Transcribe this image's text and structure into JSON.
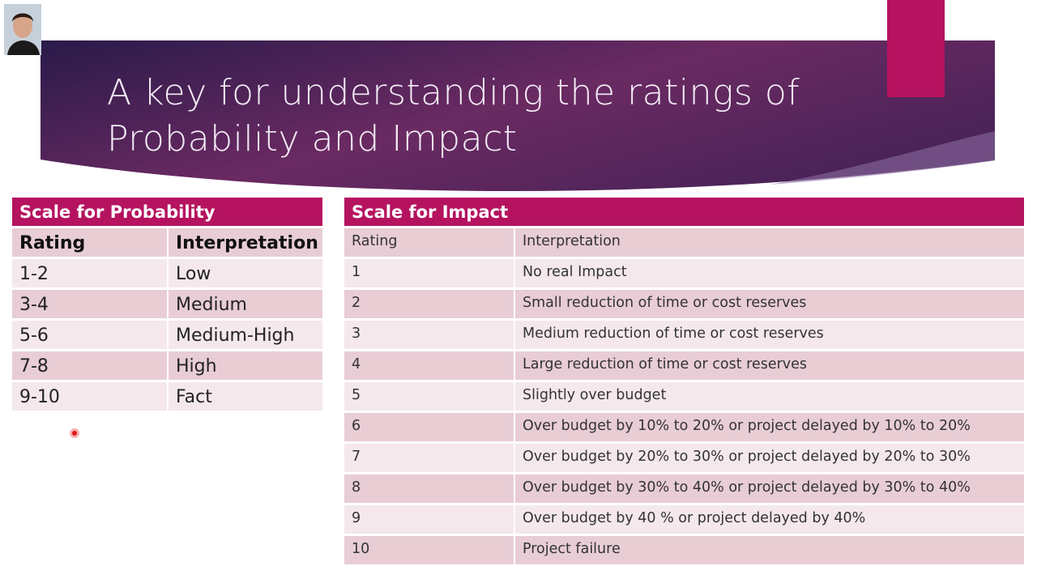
{
  "slide": {
    "title_line1": "A key for understanding the ratings of",
    "title_line2": "Probability and Impact",
    "colors": {
      "banner_dark": "#2a1a4a",
      "banner_light": "#7a2e6e",
      "accent": "#b5135f",
      "row_dark": "#e8cdd5",
      "row_light": "#f4e8ec"
    }
  },
  "probability": {
    "title": "Scale for Probability",
    "headers": [
      "Rating",
      "Interpretation"
    ],
    "rows": [
      [
        "1-2",
        "Low"
      ],
      [
        "3-4",
        "Medium"
      ],
      [
        "5-6",
        "Medium-High"
      ],
      [
        "7-8",
        "High"
      ],
      [
        "9-10",
        "Fact"
      ]
    ]
  },
  "impact": {
    "title": "Scale for Impact",
    "headers": [
      "Rating",
      "Interpretation"
    ],
    "rows": [
      [
        "1",
        "No real Impact"
      ],
      [
        "2",
        "Small reduction of time or cost reserves"
      ],
      [
        "3",
        "Medium reduction of time or cost reserves"
      ],
      [
        "4",
        "Large reduction of time or cost reserves"
      ],
      [
        "5",
        "Slightly over budget"
      ],
      [
        "6",
        "Over budget by 10% to 20% or project delayed by 10% to 20%"
      ],
      [
        "7",
        "Over budget by 20% to 30% or project delayed by 20% to 30%"
      ],
      [
        "8",
        "Over budget by 30% to 40% or project delayed by 30% to 40%"
      ],
      [
        "9",
        "Over budget by 40 % or project delayed by 40%"
      ],
      [
        "10",
        "Project failure"
      ]
    ]
  }
}
